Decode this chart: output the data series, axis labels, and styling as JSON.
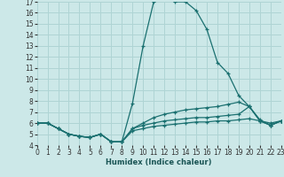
{
  "xlabel": "Humidex (Indice chaleur)",
  "bg_color": "#cce8e8",
  "grid_color": "#afd4d4",
  "line_color": "#1a7070",
  "xmin": 0,
  "xmax": 23,
  "ymin": 4,
  "ymax": 17,
  "lines": [
    [
      6.0,
      6.0,
      5.5,
      5.0,
      4.8,
      4.7,
      5.0,
      4.3,
      4.3,
      7.8,
      13.0,
      17.0,
      17.3,
      17.0,
      17.0,
      16.2,
      14.5,
      11.5,
      10.5,
      8.5,
      7.5,
      6.2,
      6.0,
      6.2
    ],
    [
      6.0,
      6.0,
      5.5,
      5.0,
      4.8,
      4.7,
      5.0,
      4.3,
      4.3,
      5.5,
      6.0,
      6.5,
      6.8,
      7.0,
      7.2,
      7.3,
      7.4,
      7.5,
      7.7,
      7.9,
      7.5,
      6.3,
      5.8,
      6.2
    ],
    [
      6.0,
      6.0,
      5.5,
      5.0,
      4.8,
      4.7,
      5.0,
      4.3,
      4.3,
      5.5,
      5.8,
      6.0,
      6.2,
      6.3,
      6.4,
      6.5,
      6.5,
      6.6,
      6.7,
      6.8,
      7.5,
      6.2,
      5.8,
      6.2
    ],
    [
      6.0,
      6.0,
      5.5,
      5.0,
      4.8,
      4.7,
      5.0,
      4.3,
      4.3,
      5.3,
      5.5,
      5.7,
      5.8,
      5.9,
      6.0,
      6.1,
      6.1,
      6.2,
      6.2,
      6.3,
      6.4,
      6.2,
      5.8,
      6.2
    ]
  ],
  "yticks": [
    4,
    5,
    6,
    7,
    8,
    9,
    10,
    11,
    12,
    13,
    14,
    15,
    16,
    17
  ],
  "xticks": [
    0,
    1,
    2,
    3,
    4,
    5,
    6,
    7,
    8,
    9,
    10,
    11,
    12,
    13,
    14,
    15,
    16,
    17,
    18,
    19,
    20,
    21,
    22,
    23
  ],
  "xlabel_fontsize": 6.0,
  "tick_fontsize": 5.5
}
